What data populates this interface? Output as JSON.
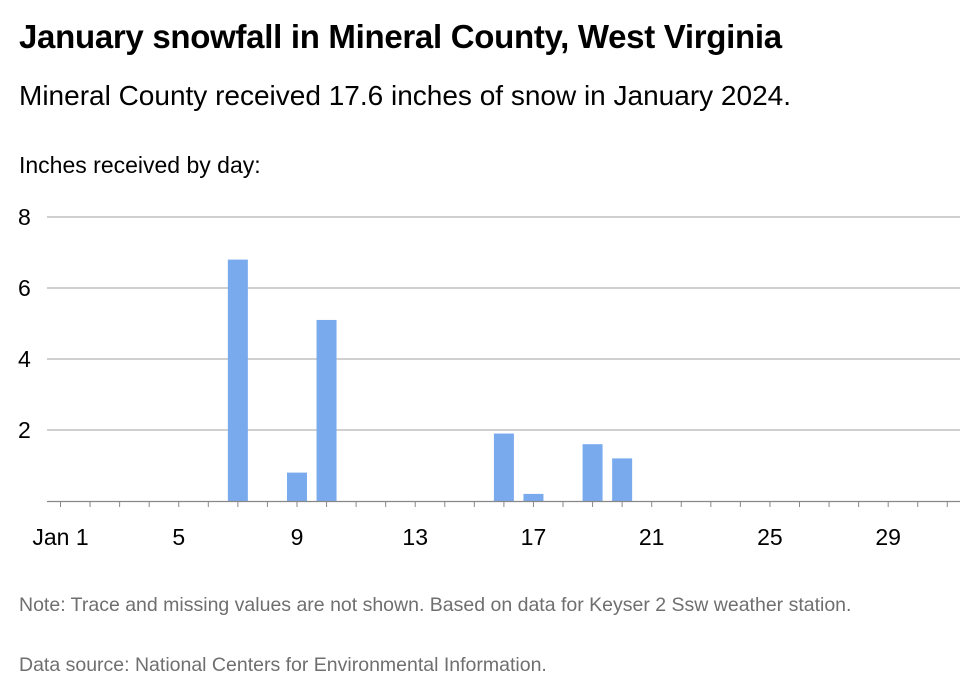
{
  "title": "January snowfall in Mineral County, West Virginia",
  "subtitle": "Mineral County received 17.6 inches of snow in January 2024.",
  "axis_caption": "Inches received by day:",
  "note": "Note: Trace and missing values are not shown. Based on data for Keyser 2 Ssw weather station.",
  "source": "Data source: National Centers for Environmental Information.",
  "colors": {
    "bar": "#7aaaee",
    "grid": "#b5b5b5",
    "axis": "#888888"
  },
  "chart_data": {
    "type": "bar",
    "title": "January snowfall in Mineral County, West Virginia",
    "subtitle": "Mineral County received 17.6 inches of snow in January 2024.",
    "ylabel": "Inches received by day:",
    "xlabel": "",
    "xlim": [
      1,
      31
    ],
    "ylim": [
      0,
      8
    ],
    "grid": true,
    "x_ticks": [
      {
        "day": 1,
        "label": "Jan 1"
      },
      {
        "day": 5,
        "label": "5"
      },
      {
        "day": 9,
        "label": "9"
      },
      {
        "day": 13,
        "label": "13"
      },
      {
        "day": 17,
        "label": "17"
      },
      {
        "day": 21,
        "label": "21"
      },
      {
        "day": 25,
        "label": "25"
      },
      {
        "day": 29,
        "label": "29"
      }
    ],
    "y_ticks": [
      {
        "value": 2,
        "label": "2"
      },
      {
        "value": 4,
        "label": "4"
      },
      {
        "value": 6,
        "label": "6"
      },
      {
        "value": 8,
        "label": "8"
      }
    ],
    "series": [
      {
        "points": [
          {
            "day": 7,
            "value": 6.8
          },
          {
            "day": 9,
            "value": 0.8
          },
          {
            "day": 10,
            "value": 5.1
          },
          {
            "day": 16,
            "value": 1.9
          },
          {
            "day": 17,
            "value": 0.2
          },
          {
            "day": 19,
            "value": 1.6
          },
          {
            "day": 20,
            "value": 1.2
          }
        ]
      }
    ]
  }
}
